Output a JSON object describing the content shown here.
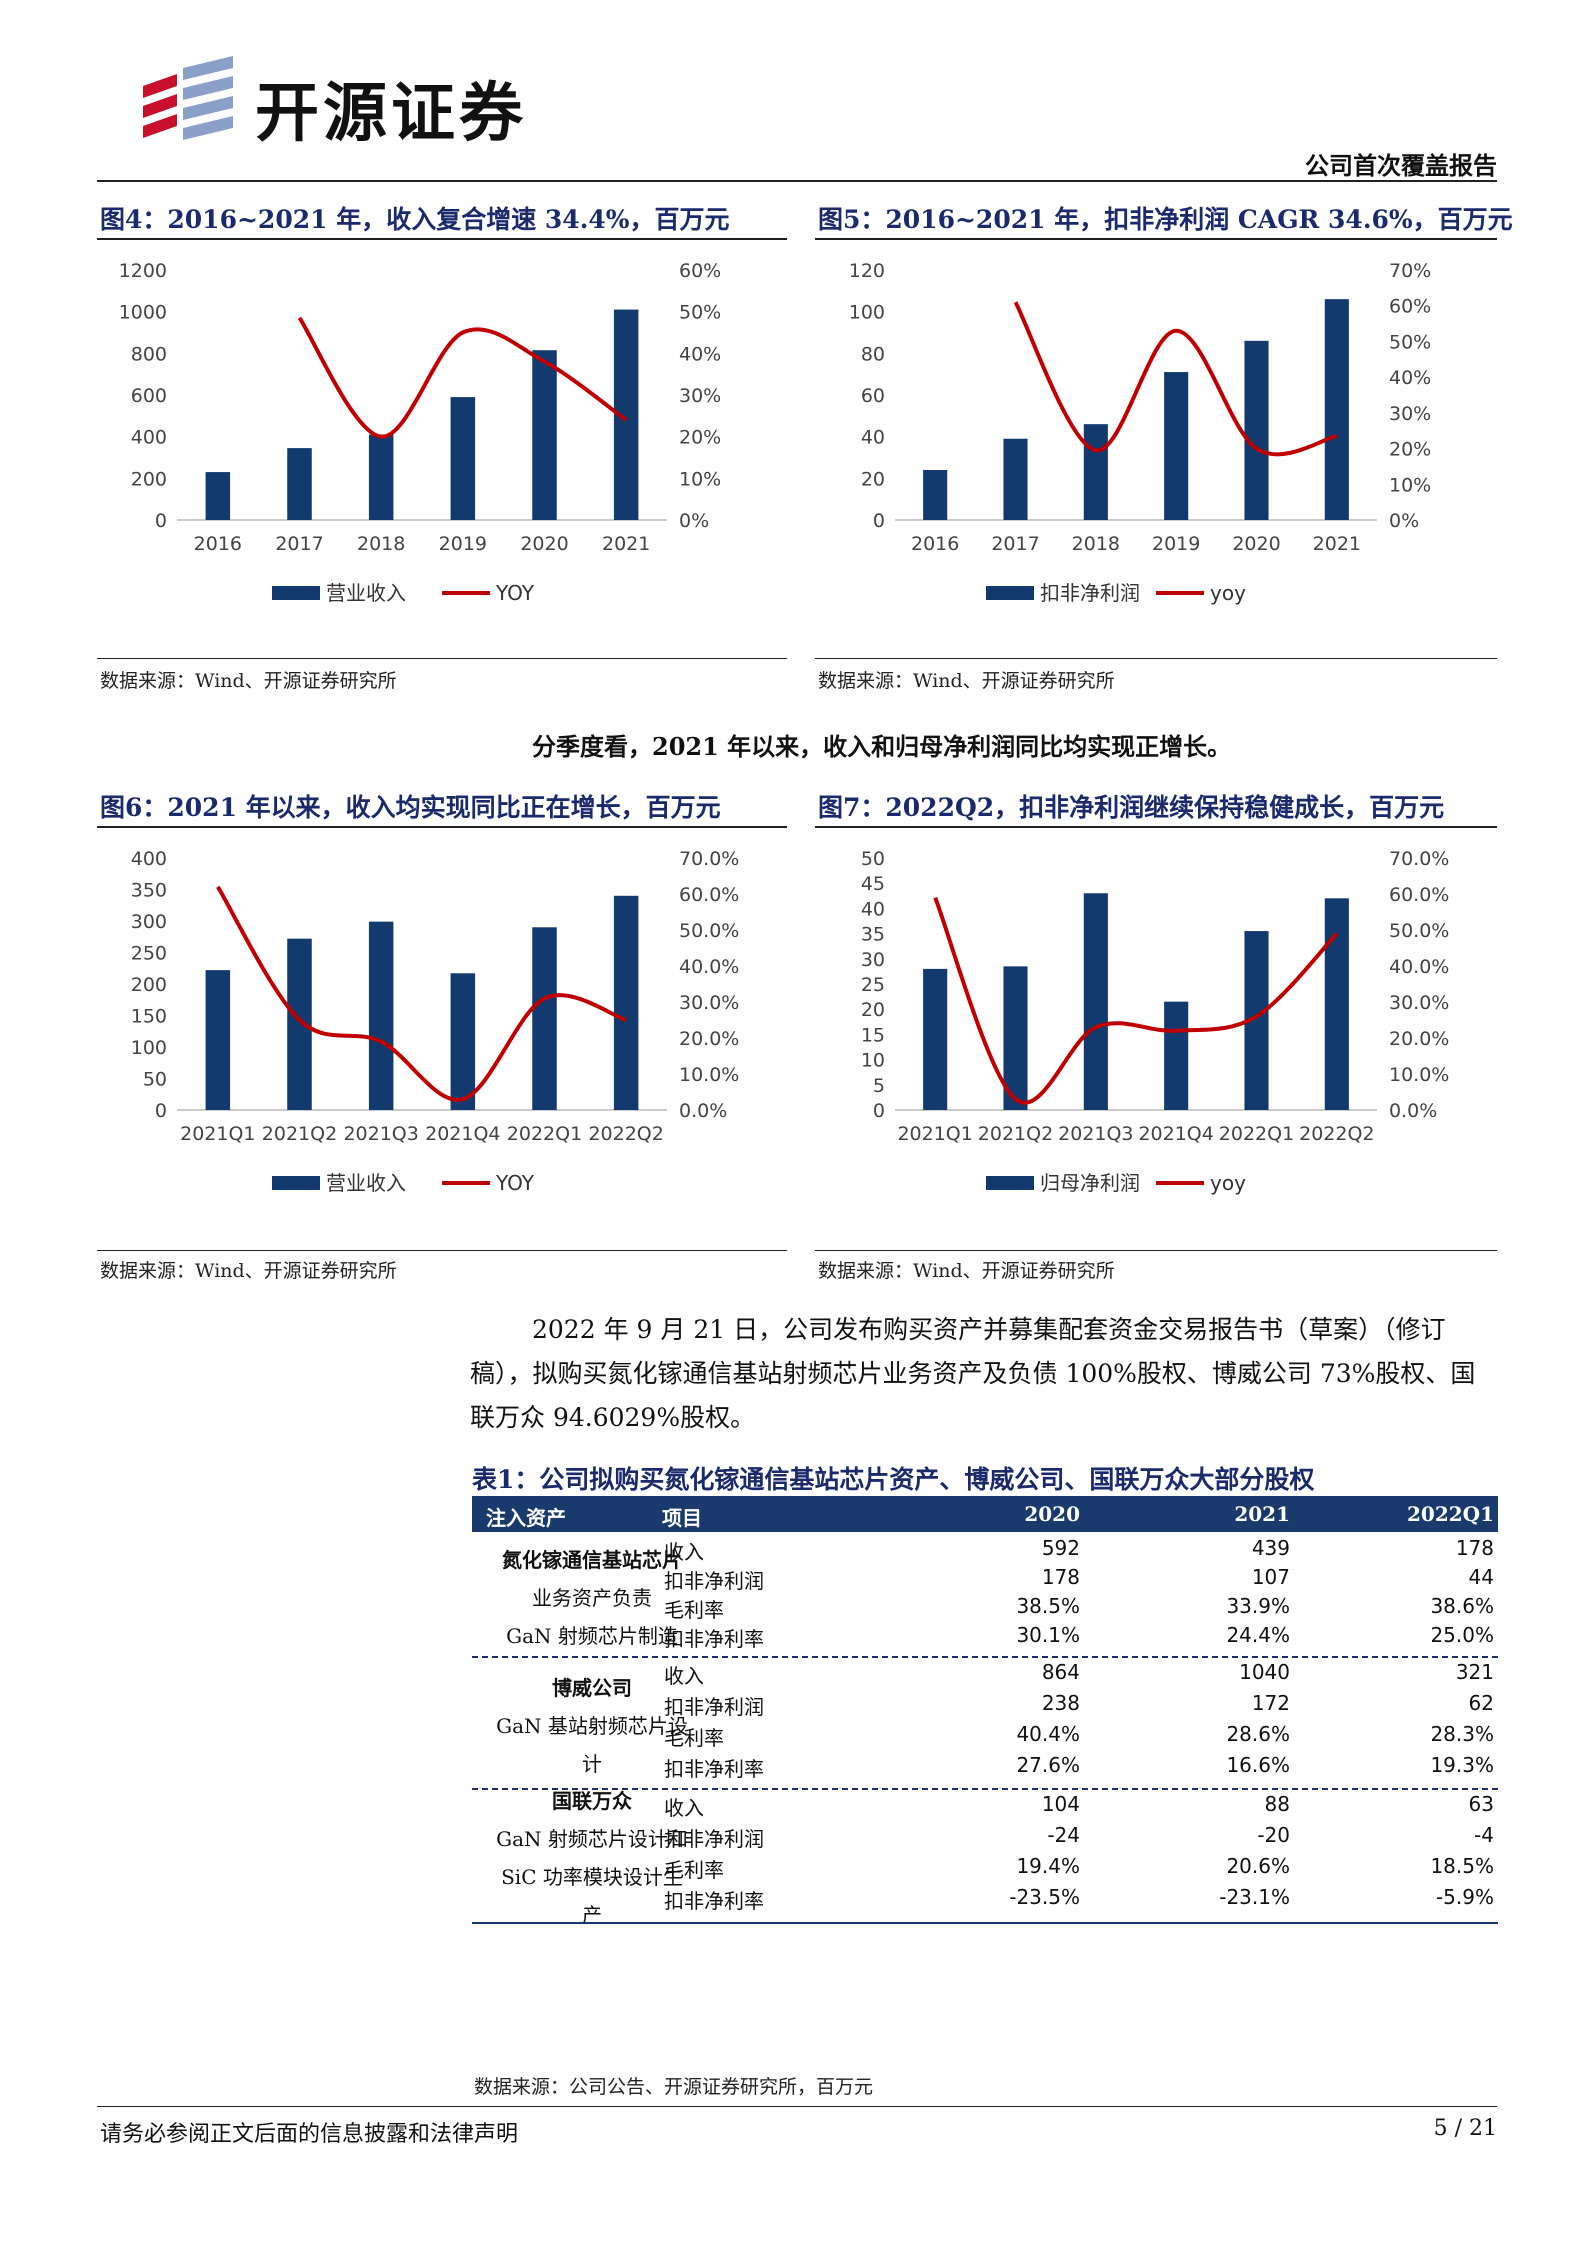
{
  "header": {
    "logo_text": "开源证券",
    "report_type": "公司首次覆盖报告"
  },
  "figures": [
    {
      "title": "图4：2016~2021 年，收入复合增速 34.4%，百万元",
      "source": "数据来源：Wind、开源证券研究所",
      "chart_data": {
        "type": "bar",
        "categories": [
          "2016",
          "2017",
          "2018",
          "2019",
          "2020",
          "2021"
        ],
        "series": [
          {
            "name": "营业收入",
            "kind": "bar",
            "axis": "left",
            "values": [
              230,
              345,
              410,
              590,
              815,
              1010
            ]
          },
          {
            "name": "YOY",
            "kind": "line",
            "axis": "right",
            "values": [
              null,
              0.485,
              0.2,
              0.45,
              0.38,
              0.24
            ]
          }
        ],
        "left_ticks": [
          "0",
          "200",
          "400",
          "600",
          "800",
          "1000",
          "1200"
        ],
        "right_ticks": [
          "0%",
          "10%",
          "20%",
          "30%",
          "40%",
          "50%",
          "60%"
        ],
        "ylim": [
          0,
          1200
        ],
        "y2lim": [
          0,
          0.6
        ],
        "legend_position": "bottom"
      }
    },
    {
      "title": "图5：2016~2021 年，扣非净利润 CAGR 34.6%，百万元",
      "source": "数据来源：Wind、开源证券研究所",
      "chart_data": {
        "type": "bar",
        "categories": [
          "2016",
          "2017",
          "2018",
          "2019",
          "2020",
          "2021"
        ],
        "series": [
          {
            "name": "扣非净利润",
            "kind": "bar",
            "axis": "left",
            "values": [
              24,
              39,
              46,
              71,
              86,
              106
            ]
          },
          {
            "name": "yoy",
            "kind": "line",
            "axis": "right",
            "values": [
              null,
              0.61,
              0.195,
              0.53,
              0.2,
              0.235
            ]
          }
        ],
        "left_ticks": [
          "0",
          "20",
          "40",
          "60",
          "80",
          "100",
          "120"
        ],
        "right_ticks": [
          "0%",
          "10%",
          "20%",
          "30%",
          "40%",
          "50%",
          "60%",
          "70%"
        ],
        "ylim": [
          0,
          120
        ],
        "y2lim": [
          0,
          0.7
        ],
        "legend_position": "bottom"
      }
    },
    {
      "title": "图6：2021 年以来，收入均实现同比正在增长，百万元",
      "source": "数据来源：Wind、开源证券研究所",
      "chart_data": {
        "type": "bar",
        "categories": [
          "2021Q1",
          "2021Q2",
          "2021Q3",
          "2021Q4",
          "2022Q1",
          "2022Q2"
        ],
        "series": [
          {
            "name": "营业收入",
            "kind": "bar",
            "axis": "left",
            "values": [
              222,
              272,
              299,
              217,
              290,
              340
            ]
          },
          {
            "name": "YOY",
            "kind": "line",
            "axis": "right",
            "values": [
              0.62,
              0.25,
              0.19,
              0.03,
              0.31,
              0.25
            ]
          }
        ],
        "left_ticks": [
          "0",
          "50",
          "100",
          "150",
          "200",
          "250",
          "300",
          "350",
          "400"
        ],
        "right_ticks": [
          "0.0%",
          "10.0%",
          "20.0%",
          "30.0%",
          "40.0%",
          "50.0%",
          "60.0%",
          "70.0%"
        ],
        "ylim": [
          0,
          400
        ],
        "y2lim": [
          0,
          0.7
        ],
        "legend_position": "bottom"
      }
    },
    {
      "title": "图7：2022Q2，扣非净利润继续保持稳健成长，百万元",
      "source": "数据来源：Wind、开源证券研究所",
      "chart_data": {
        "type": "bar",
        "categories": [
          "2021Q1",
          "2021Q2",
          "2021Q3",
          "2021Q4",
          "2022Q1",
          "2022Q2"
        ],
        "series": [
          {
            "name": "归母净利润",
            "kind": "bar",
            "axis": "left",
            "values": [
              28,
              28.5,
              43,
              21.5,
              35.5,
              42
            ]
          },
          {
            "name": "yoy",
            "kind": "line",
            "axis": "right",
            "values": [
              0.59,
              0.03,
              0.23,
              0.22,
              0.26,
              0.49
            ]
          }
        ],
        "left_ticks": [
          "0",
          "5",
          "10",
          "15",
          "20",
          "25",
          "30",
          "35",
          "40",
          "45",
          "50"
        ],
        "right_ticks": [
          "0.0%",
          "10.0%",
          "20.0%",
          "30.0%",
          "40.0%",
          "50.0%",
          "60.0%",
          "70.0%"
        ],
        "ylim": [
          0,
          50
        ],
        "y2lim": [
          0,
          0.7
        ],
        "legend_position": "bottom"
      }
    }
  ],
  "summary_line": "分季度看，2021 年以来，收入和归母净利润同比均实现正增长。",
  "paragraph": "2022 年 9 月 21 日，公司发布购买资产并募集配套资金交易报告书（草案）（修订稿），拟购买氮化镓通信基站射频芯片业务资产及负债 100%股权、博威公司 73%股权、国联万众 94.6029%股权。",
  "table": {
    "title": "表1：公司拟购买氮化镓通信基站芯片资产、博威公司、国联万众大部分股权",
    "headers": [
      "注入资产",
      "项目",
      "2020",
      "2021",
      "2022Q1"
    ],
    "groups": [
      {
        "name_lines": [
          "氮化镓通信基站芯片",
          "业务资产负责",
          "GaN 射频芯片制造"
        ],
        "rows": [
          {
            "item": "收入",
            "v2020": "592",
            "v2021": "439",
            "v2022": "178"
          },
          {
            "item": "扣非净利润",
            "v2020": "178",
            "v2021": "107",
            "v2022": "44"
          },
          {
            "item": "毛利率",
            "v2020": "38.5%",
            "v2021": "33.9%",
            "v2022": "38.6%"
          },
          {
            "item": "扣非净利率",
            "v2020": "30.1%",
            "v2021": "24.4%",
            "v2022": "25.0%"
          }
        ]
      },
      {
        "name_lines": [
          "博威公司",
          "GaN 基站射频芯片设",
          "计"
        ],
        "rows": [
          {
            "item": "收入",
            "v2020": "864",
            "v2021": "1040",
            "v2022": "321"
          },
          {
            "item": "扣非净利润",
            "v2020": "238",
            "v2021": "172",
            "v2022": "62"
          },
          {
            "item": "毛利率",
            "v2020": "40.4%",
            "v2021": "28.6%",
            "v2022": "28.3%"
          },
          {
            "item": "扣非净利率",
            "v2020": "27.6%",
            "v2021": "16.6%",
            "v2022": "19.3%"
          }
        ]
      },
      {
        "name_lines": [
          "国联万众",
          "GaN 射频芯片设计和",
          "SiC 功率模块设计生",
          "产"
        ],
        "rows": [
          {
            "item": "收入",
            "v2020": "104",
            "v2021": "88",
            "v2022": "63"
          },
          {
            "item": "扣非净利润",
            "v2020": "-24",
            "v2021": "-20",
            "v2022": "-4"
          },
          {
            "item": "毛利率",
            "v2020": "19.4%",
            "v2021": "20.6%",
            "v2022": "18.5%"
          },
          {
            "item": "扣非净利率",
            "v2020": "-23.5%",
            "v2021": "-23.1%",
            "v2022": "-5.9%"
          }
        ]
      }
    ],
    "source": "数据来源：公司公告、开源证券研究所，百万元"
  },
  "footer": {
    "disclaimer": "请务必参阅正文后面的信息披露和法律声明",
    "page": "5 / 21"
  },
  "colors": {
    "bar": "#123a6e",
    "line": "#c00000",
    "title": "#1a2a6c",
    "header_bg": "#1a3a6e"
  }
}
